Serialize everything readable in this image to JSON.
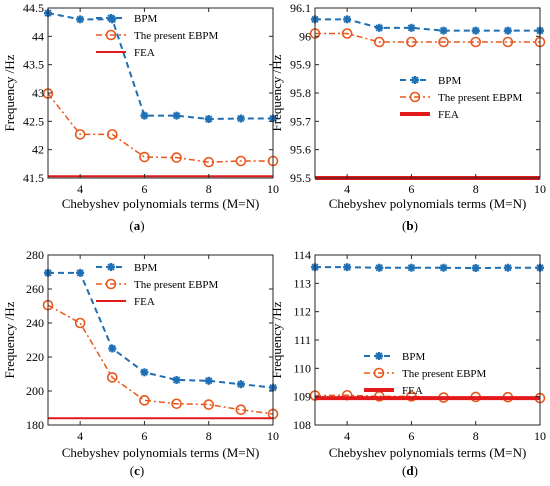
{
  "colors": {
    "bpm": "#1f6fb5",
    "ebpm": "#e8581c",
    "fea": "#e31a1c",
    "axis": "#262626"
  },
  "chart_data": [
    {
      "type": "line",
      "panel_label": "(a)",
      "xlabel": "Chebyshev polynomials terms (M=N)",
      "ylabel": "Frequency /Hz",
      "xlim": [
        3,
        10
      ],
      "ylim": [
        41.5,
        44.5
      ],
      "xticks": [
        4,
        6,
        8,
        10
      ],
      "yticks": [
        41.5,
        42,
        42.5,
        43,
        43.5,
        44,
        44.5
      ],
      "ytick_labels": [
        "41.5",
        "42",
        "42.5",
        "43",
        "43.5",
        "44",
        "44.5"
      ],
      "legend_position": "top-right",
      "x": [
        3,
        4,
        5,
        6,
        7,
        8,
        9,
        10
      ],
      "series": [
        {
          "name": "BPM",
          "values": [
            44.41,
            44.3,
            44.3,
            42.6,
            42.6,
            42.54,
            42.55,
            42.55
          ],
          "style": "bpm"
        },
        {
          "name": "The present EBPM",
          "values": [
            42.99,
            42.27,
            42.27,
            41.87,
            41.86,
            41.78,
            41.8,
            41.8
          ],
          "style": "ebpm"
        },
        {
          "name": "FEA",
          "values": [
            41.53,
            41.53,
            41.53,
            41.53,
            41.53,
            41.53,
            41.53,
            41.53
          ],
          "style": "fea"
        }
      ]
    },
    {
      "type": "line",
      "panel_label": "(b)",
      "xlabel": "Chebyshev polynomials terms (M=N)",
      "ylabel": "Frequency /Hz",
      "xlim": [
        3,
        10
      ],
      "ylim": [
        95.5,
        96.1
      ],
      "xticks": [
        4,
        6,
        8,
        10
      ],
      "yticks": [
        95.5,
        95.6,
        95.7,
        95.8,
        95.9,
        96,
        96.1
      ],
      "ytick_labels": [
        "95.5",
        "95.6",
        "95.7",
        "95.8",
        "95.9",
        "96",
        "96.1"
      ],
      "legend_position": "middle-right",
      "x": [
        3,
        4,
        5,
        6,
        7,
        8,
        9,
        10
      ],
      "series": [
        {
          "name": "BPM",
          "values": [
            96.06,
            96.06,
            96.03,
            96.03,
            96.02,
            96.02,
            96.02,
            96.02
          ],
          "style": "bpm"
        },
        {
          "name": "The present EBPM",
          "values": [
            96.01,
            96.01,
            95.98,
            95.98,
            95.98,
            95.98,
            95.98,
            95.98
          ],
          "style": "ebpm"
        },
        {
          "name": "FEA",
          "values": [
            95.5,
            95.5,
            95.5,
            95.5,
            95.5,
            95.5,
            95.5,
            95.5
          ],
          "style": "fea_thick"
        }
      ]
    },
    {
      "type": "line",
      "panel_label": "(c)",
      "xlabel": "Chebyshev polynomials terms (M=N)",
      "ylabel": "Frequency /Hz",
      "xlim": [
        3,
        10
      ],
      "ylim": [
        180,
        280
      ],
      "xticks": [
        4,
        6,
        8,
        10
      ],
      "yticks": [
        180,
        200,
        220,
        240,
        260,
        280
      ],
      "ytick_labels": [
        "180",
        "200",
        "220",
        "240",
        "260",
        "280"
      ],
      "legend_position": "top-right",
      "x": [
        3,
        4,
        5,
        6,
        7,
        8,
        9,
        10
      ],
      "series": [
        {
          "name": "BPM",
          "values": [
            269.5,
            269.5,
            225,
            211,
            206.5,
            206,
            204,
            202
          ],
          "style": "bpm"
        },
        {
          "name": "The present EBPM",
          "values": [
            250.5,
            240,
            208,
            194.5,
            192.5,
            192,
            189,
            186.5
          ],
          "style": "ebpm"
        },
        {
          "name": "FEA",
          "values": [
            184,
            184,
            184,
            184,
            184,
            184,
            184,
            184
          ],
          "style": "fea"
        }
      ]
    },
    {
      "type": "line",
      "panel_label": "(d)",
      "xlabel": "Chebyshev polynomials terms (M=N)",
      "ylabel": "Frequency /Hz",
      "xlim": [
        3,
        10
      ],
      "ylim": [
        108,
        114
      ],
      "xticks": [
        4,
        6,
        8,
        10
      ],
      "yticks": [
        108,
        109,
        110,
        111,
        112,
        113,
        114
      ],
      "ytick_labels": [
        "108",
        "109",
        "110",
        "111",
        "112",
        "113",
        "114"
      ],
      "legend_position": "middle-right",
      "x": [
        3,
        4,
        5,
        6,
        7,
        8,
        9,
        10
      ],
      "series": [
        {
          "name": "BPM",
          "values": [
            113.57,
            113.57,
            113.55,
            113.55,
            113.55,
            113.54,
            113.55,
            113.55
          ],
          "style": "bpm"
        },
        {
          "name": "The present EBPM",
          "values": [
            109.04,
            109.05,
            109.01,
            109.01,
            108.97,
            108.99,
            108.98,
            108.95
          ],
          "style": "ebpm"
        },
        {
          "name": "FEA",
          "values": [
            108.95,
            108.95,
            108.95,
            108.95,
            108.95,
            108.95,
            108.95,
            108.95
          ],
          "style": "fea_thick"
        }
      ]
    }
  ]
}
